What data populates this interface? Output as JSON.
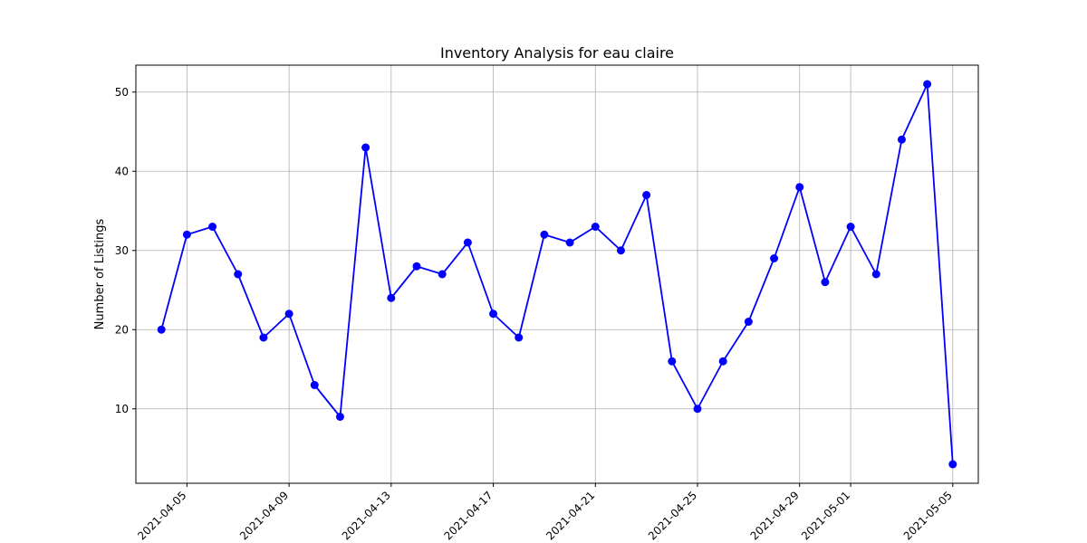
{
  "chart_data": {
    "type": "line",
    "title": "Inventory Analysis for eau claire",
    "xlabel": "",
    "ylabel": "Number of Listings",
    "x": [
      "2021-04-04",
      "2021-04-05",
      "2021-04-06",
      "2021-04-07",
      "2021-04-08",
      "2021-04-09",
      "2021-04-10",
      "2021-04-11",
      "2021-04-12",
      "2021-04-13",
      "2021-04-14",
      "2021-04-15",
      "2021-04-16",
      "2021-04-17",
      "2021-04-18",
      "2021-04-19",
      "2021-04-20",
      "2021-04-21",
      "2021-04-22",
      "2021-04-23",
      "2021-04-24",
      "2021-04-25",
      "2021-04-26",
      "2021-04-27",
      "2021-04-28",
      "2021-04-29",
      "2021-04-30",
      "2021-05-01",
      "2021-05-02",
      "2021-05-03",
      "2021-05-04",
      "2021-05-05"
    ],
    "series": [
      {
        "values": [
          20,
          32,
          33,
          27,
          19,
          22,
          13,
          9,
          43,
          24,
          28,
          27,
          31,
          22,
          19,
          32,
          31,
          33,
          30,
          37,
          16,
          10,
          16,
          21,
          29,
          38,
          26,
          33,
          27,
          44,
          51,
          3
        ],
        "color": "#0000ff",
        "marker": "circle"
      }
    ],
    "xticks": [
      "2021-04-05",
      "2021-04-09",
      "2021-04-13",
      "2021-04-17",
      "2021-04-21",
      "2021-04-25",
      "2021-04-29",
      "2021-05-01",
      "2021-05-05"
    ],
    "yticks": [
      10,
      20,
      30,
      40,
      50
    ],
    "xlim": [
      "2021-04-03",
      "2021-05-06"
    ],
    "ylim": [
      0.6,
      53.4
    ],
    "grid": true
  }
}
